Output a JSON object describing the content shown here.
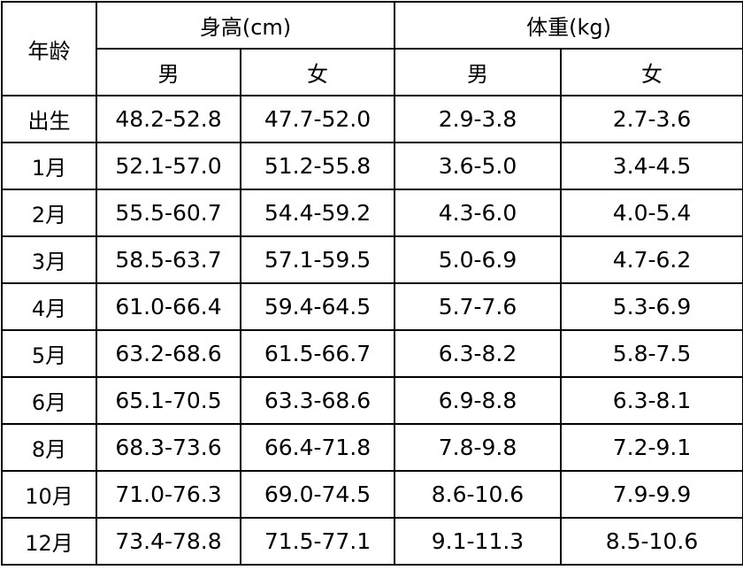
{
  "table": {
    "age_header": "年龄",
    "height_header": "身高(cm)",
    "weight_header": "体重(kg)",
    "sub_headers": [
      "男",
      "女",
      "男",
      "女"
    ],
    "rows": [
      {
        "age": "出生",
        "height_male": "48.2-52.8",
        "height_female": "47.7-52.0",
        "weight_male": "2.9-3.8",
        "weight_female": "2.7-3.6"
      },
      {
        "age": "1月",
        "height_male": "52.1-57.0",
        "height_female": "51.2-55.8",
        "weight_male": "3.6-5.0",
        "weight_female": "3.4-4.5"
      },
      {
        "age": "2月",
        "height_male": "55.5-60.7",
        "height_female": "54.4-59.2",
        "weight_male": "4.3-6.0",
        "weight_female": "4.0-5.4"
      },
      {
        "age": "3月",
        "height_male": "58.5-63.7",
        "height_female": "57.1-59.5",
        "weight_male": "5.0-6.9",
        "weight_female": "4.7-6.2"
      },
      {
        "age": "4月",
        "height_male": "61.0-66.4",
        "height_female": "59.4-64.5",
        "weight_male": "5.7-7.6",
        "weight_female": "5.3-6.9"
      },
      {
        "age": "5月",
        "height_male": "63.2-68.6",
        "height_female": "61.5-66.7",
        "weight_male": "6.3-8.2",
        "weight_female": "5.8-7.5"
      },
      {
        "age": "6月",
        "height_male": "65.1-70.5",
        "height_female": "63.3-68.6",
        "weight_male": "6.9-8.8",
        "weight_female": "6.3-8.1"
      },
      {
        "age": "8月",
        "height_male": "68.3-73.6",
        "height_female": "66.4-71.8",
        "weight_male": "7.8-9.8",
        "weight_female": "7.2-9.1"
      },
      {
        "age": "10月",
        "height_male": "71.0-76.3",
        "height_female": "69.0-74.5",
        "weight_male": "8.6-10.6",
        "weight_female": "7.9-9.9"
      },
      {
        "age": "12月",
        "height_male": "73.4-78.8",
        "height_female": "71.5-77.1",
        "weight_male": "9.1-11.3",
        "weight_female": "8.5-10.6"
      }
    ]
  }
}
